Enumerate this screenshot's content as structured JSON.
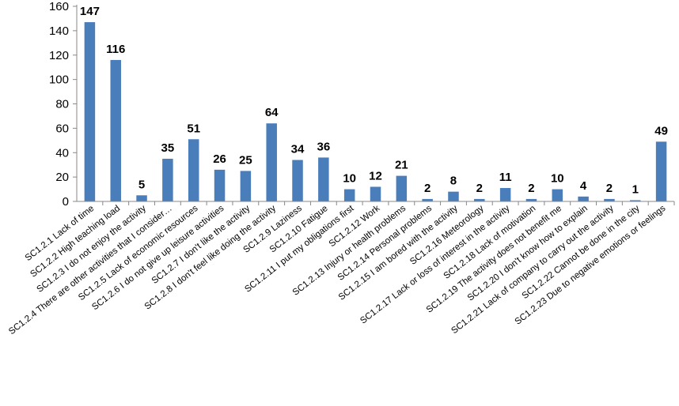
{
  "chart_data": {
    "type": "bar",
    "title": "",
    "xlabel": "",
    "ylabel": "",
    "ylim": [
      0,
      160
    ],
    "yticks": [
      0,
      20,
      40,
      60,
      80,
      100,
      120,
      140,
      160
    ],
    "grid": false,
    "legend": "none",
    "bar_color": "#4a7ebb",
    "categories": [
      "SC1.2.1 Lack of time",
      "SC1.2.2 High teaching load",
      "SC1.2.3 I do not enjoy the activity",
      "SC1.2.4 There are other activities that I consider…",
      "SC1.2.5 Lack of economic resources",
      "SC1.2.6 I do not give up leisure activities",
      "SC1.2.7 I don't like the activity",
      "SC1.2.8 I don't feel like doing the activity",
      "SC1.2.9 Laziness",
      "SC1.2.10 Fatigue",
      "SC1.2.11 I put my obligations first",
      "SC1.2.12 Work",
      "SC1.2.13 Injury or health problems",
      "SC1.2.14 Personal problems",
      "SC1.2.15 I am bored with the activity",
      "SC1.2.16 Meteorology",
      "SC1.2.17 Lack or loss of interest in the activity",
      "SC1.2.18 Lack of motivation",
      "SC1.2.19 The activity does not benefit me",
      "SC1.2.20 I don't know how to explain",
      "SC1.2.21 Lack of company to carry out the activity",
      "SC1.2.22 Cannot be done in the city",
      "SC1.2.23 Due to negative emotions or feelings"
    ],
    "values": [
      147,
      116,
      5,
      35,
      51,
      26,
      25,
      64,
      34,
      36,
      10,
      12,
      21,
      2,
      8,
      2,
      11,
      2,
      10,
      4,
      2,
      1,
      49
    ],
    "data_labels": [
      "147",
      "116",
      "5",
      "35",
      "51",
      "26",
      "25",
      "64",
      "34",
      "36",
      "10",
      "12",
      "21",
      "2",
      "8",
      "2",
      "11",
      "2",
      "10",
      "4",
      "2",
      "1",
      "49"
    ]
  }
}
